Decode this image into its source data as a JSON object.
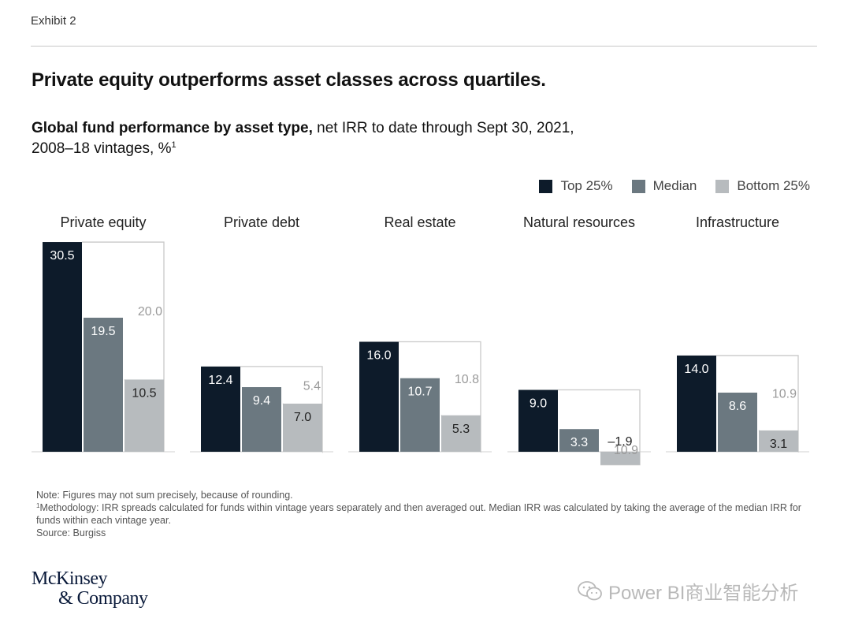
{
  "exhibit": "Exhibit 2",
  "title": "Private equity outperforms asset classes across quartiles.",
  "subtitle": {
    "bold": "Global fund performance by asset type,",
    "rest_line1": " net IRR to date through Sept 30, 2021,",
    "line2": "2008–18 vintages, %",
    "footnote_mark": "1"
  },
  "colors": {
    "top": "#0d1b2a",
    "median": "#6b7880",
    "bottom": "#b7bbbe",
    "spread_outline": "#c9c9c9"
  },
  "legend": [
    "Top 25%",
    "Median",
    "Bottom 25%"
  ],
  "chart_data": {
    "type": "bar",
    "series_names": [
      "Top 25%",
      "Median",
      "Bottom 25%"
    ],
    "groups": [
      {
        "name": "Private equity",
        "top": 30.5,
        "median": 19.5,
        "bottom": 10.5,
        "spread": 20.0
      },
      {
        "name": "Private debt",
        "top": 12.4,
        "median": 9.4,
        "bottom": 7.0,
        "spread": 5.4
      },
      {
        "name": "Real estate",
        "top": 16.0,
        "median": 10.7,
        "bottom": 5.3,
        "spread": 10.8
      },
      {
        "name": "Natural resources",
        "top": 9.0,
        "median": 3.3,
        "bottom": -1.9,
        "spread": 10.9
      },
      {
        "name": "Infrastructure",
        "top": 14.0,
        "median": 8.6,
        "bottom": 3.1,
        "spread": 10.9
      }
    ],
    "value_labels": {
      "Private equity": [
        "30.5",
        "19.5",
        "10.5",
        "20.0"
      ],
      "Private debt": [
        "12.4",
        "9.4",
        "7.0",
        "5.4"
      ],
      "Real estate": [
        "16.0",
        "10.7",
        "5.3",
        "10.8"
      ],
      "Natural resources": [
        "9.0",
        "3.3",
        "–1.9",
        "10.9"
      ],
      "Infrastructure": [
        "14.0",
        "8.6",
        "3.1",
        "10.9"
      ]
    }
  },
  "notes": {
    "note": "Note: Figures may not sum precisely, because of rounding.",
    "methodology_mark": "1",
    "methodology": "Methodology: IRR spreads calculated for funds within vintage years separately and then averaged out. Median IRR was calculated by taking the average of the median IRR for funds within each vintage year.",
    "source": "Source: Burgiss"
  },
  "logo": {
    "line1": "McKinsey",
    "line2": "& Company"
  },
  "watermark": "Power BI商业智能分析"
}
